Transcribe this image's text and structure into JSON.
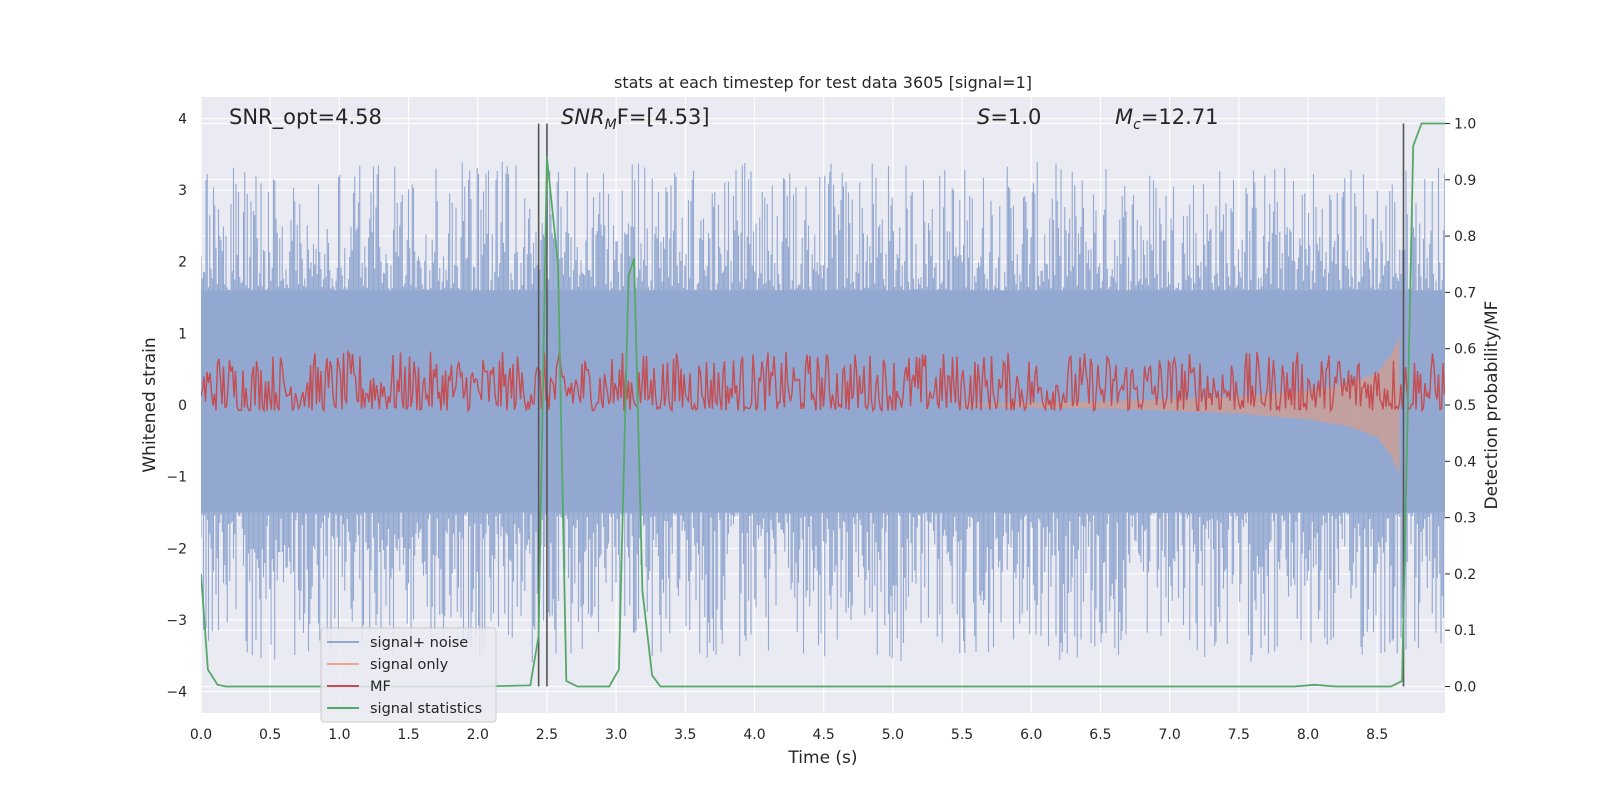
{
  "chart_data": {
    "type": "line",
    "title": "stats at each timestep for test data 3605 [signal=1]",
    "xlabel": "Time (s)",
    "ylabel_left": "Whitened strain",
    "ylabel_right": "Detection probability/MF",
    "xlim": [
      0.0,
      8.99
    ],
    "ylim_left": [
      -4.3,
      4.3
    ],
    "ylim_right": [
      -0.047,
      1.047
    ],
    "x_ticks": [
      "0.0",
      "0.5",
      "1.0",
      "1.5",
      "2.0",
      "2.5",
      "3.0",
      "3.5",
      "4.0",
      "4.5",
      "5.0",
      "5.5",
      "6.0",
      "6.5",
      "7.0",
      "7.5",
      "8.0",
      "8.5"
    ],
    "y_ticks_left": [
      "4",
      "3",
      "2",
      "1",
      "0",
      "−1",
      "−2",
      "−3",
      "−4"
    ],
    "y_ticks_right": [
      "1.0",
      "0.9",
      "0.8",
      "0.7",
      "0.6",
      "0.5",
      "0.4",
      "0.3",
      "0.2",
      "0.1",
      "0.0"
    ],
    "annotations": {
      "snr_opt": "SNR_opt=4.58",
      "snr_mf_main": "SNR",
      "snr_mf_sub": "M",
      "snr_mf_rest": "F=[4.53]",
      "s_main": "S",
      "s_rest": "=1.0",
      "mc_main": "M",
      "mc_sub": "c",
      "mc_rest": "=12.71"
    },
    "legend": {
      "position": "lower-left",
      "entries": [
        "signal+ noise",
        "signal only",
        "MF",
        "signal statistics"
      ]
    },
    "series": [
      {
        "name": "signal+ noise",
        "axis": "left",
        "color": "#92a8d1",
        "kind": "dense noise band",
        "core_band": [
          -1.5,
          1.6
        ],
        "peak_range": [
          -3.6,
          3.4
        ]
      },
      {
        "name": "signal only",
        "axis": "left",
        "color": "#dd8452",
        "kind": "chirp envelope",
        "x": [
          5.5,
          6.5,
          7.0,
          7.5,
          8.0,
          8.3,
          8.5,
          8.6,
          8.67
        ],
        "amplitude": [
          0.02,
          0.05,
          0.08,
          0.12,
          0.2,
          0.3,
          0.45,
          0.7,
          1.0
        ]
      },
      {
        "name": "MF",
        "axis": "right",
        "color": "#c44e52",
        "kind": "noisy band",
        "baseline": 0.52,
        "range": [
          0.49,
          0.63
        ]
      },
      {
        "name": "signal statistics",
        "axis": "right",
        "color": "#55a868",
        "x": [
          0.0,
          0.05,
          0.12,
          0.18,
          0.3,
          0.6,
          1.0,
          1.5,
          2.0,
          2.38,
          2.44,
          2.5,
          2.58,
          2.64,
          2.72,
          2.85,
          2.95,
          3.02,
          3.09,
          3.13,
          3.19,
          3.26,
          3.32,
          3.5,
          4.0,
          5.0,
          6.0,
          7.0,
          7.9,
          8.05,
          8.2,
          8.6,
          8.68,
          8.76,
          8.82,
          8.9,
          8.99
        ],
        "y": [
          0.2,
          0.03,
          0.003,
          0.0,
          0.0,
          0.0,
          0.0,
          0.0,
          0.0,
          0.002,
          0.09,
          0.94,
          0.75,
          0.01,
          0.0,
          0.0,
          0.0,
          0.03,
          0.73,
          0.76,
          0.17,
          0.02,
          0.0,
          0.0,
          0.0,
          0.0,
          0.0,
          0.0,
          0.0,
          0.003,
          0.0,
          0.0,
          0.01,
          0.96,
          1.0,
          1.0,
          1.0
        ]
      }
    ],
    "vertical_markers": [
      2.44,
      2.5,
      8.69
    ]
  }
}
